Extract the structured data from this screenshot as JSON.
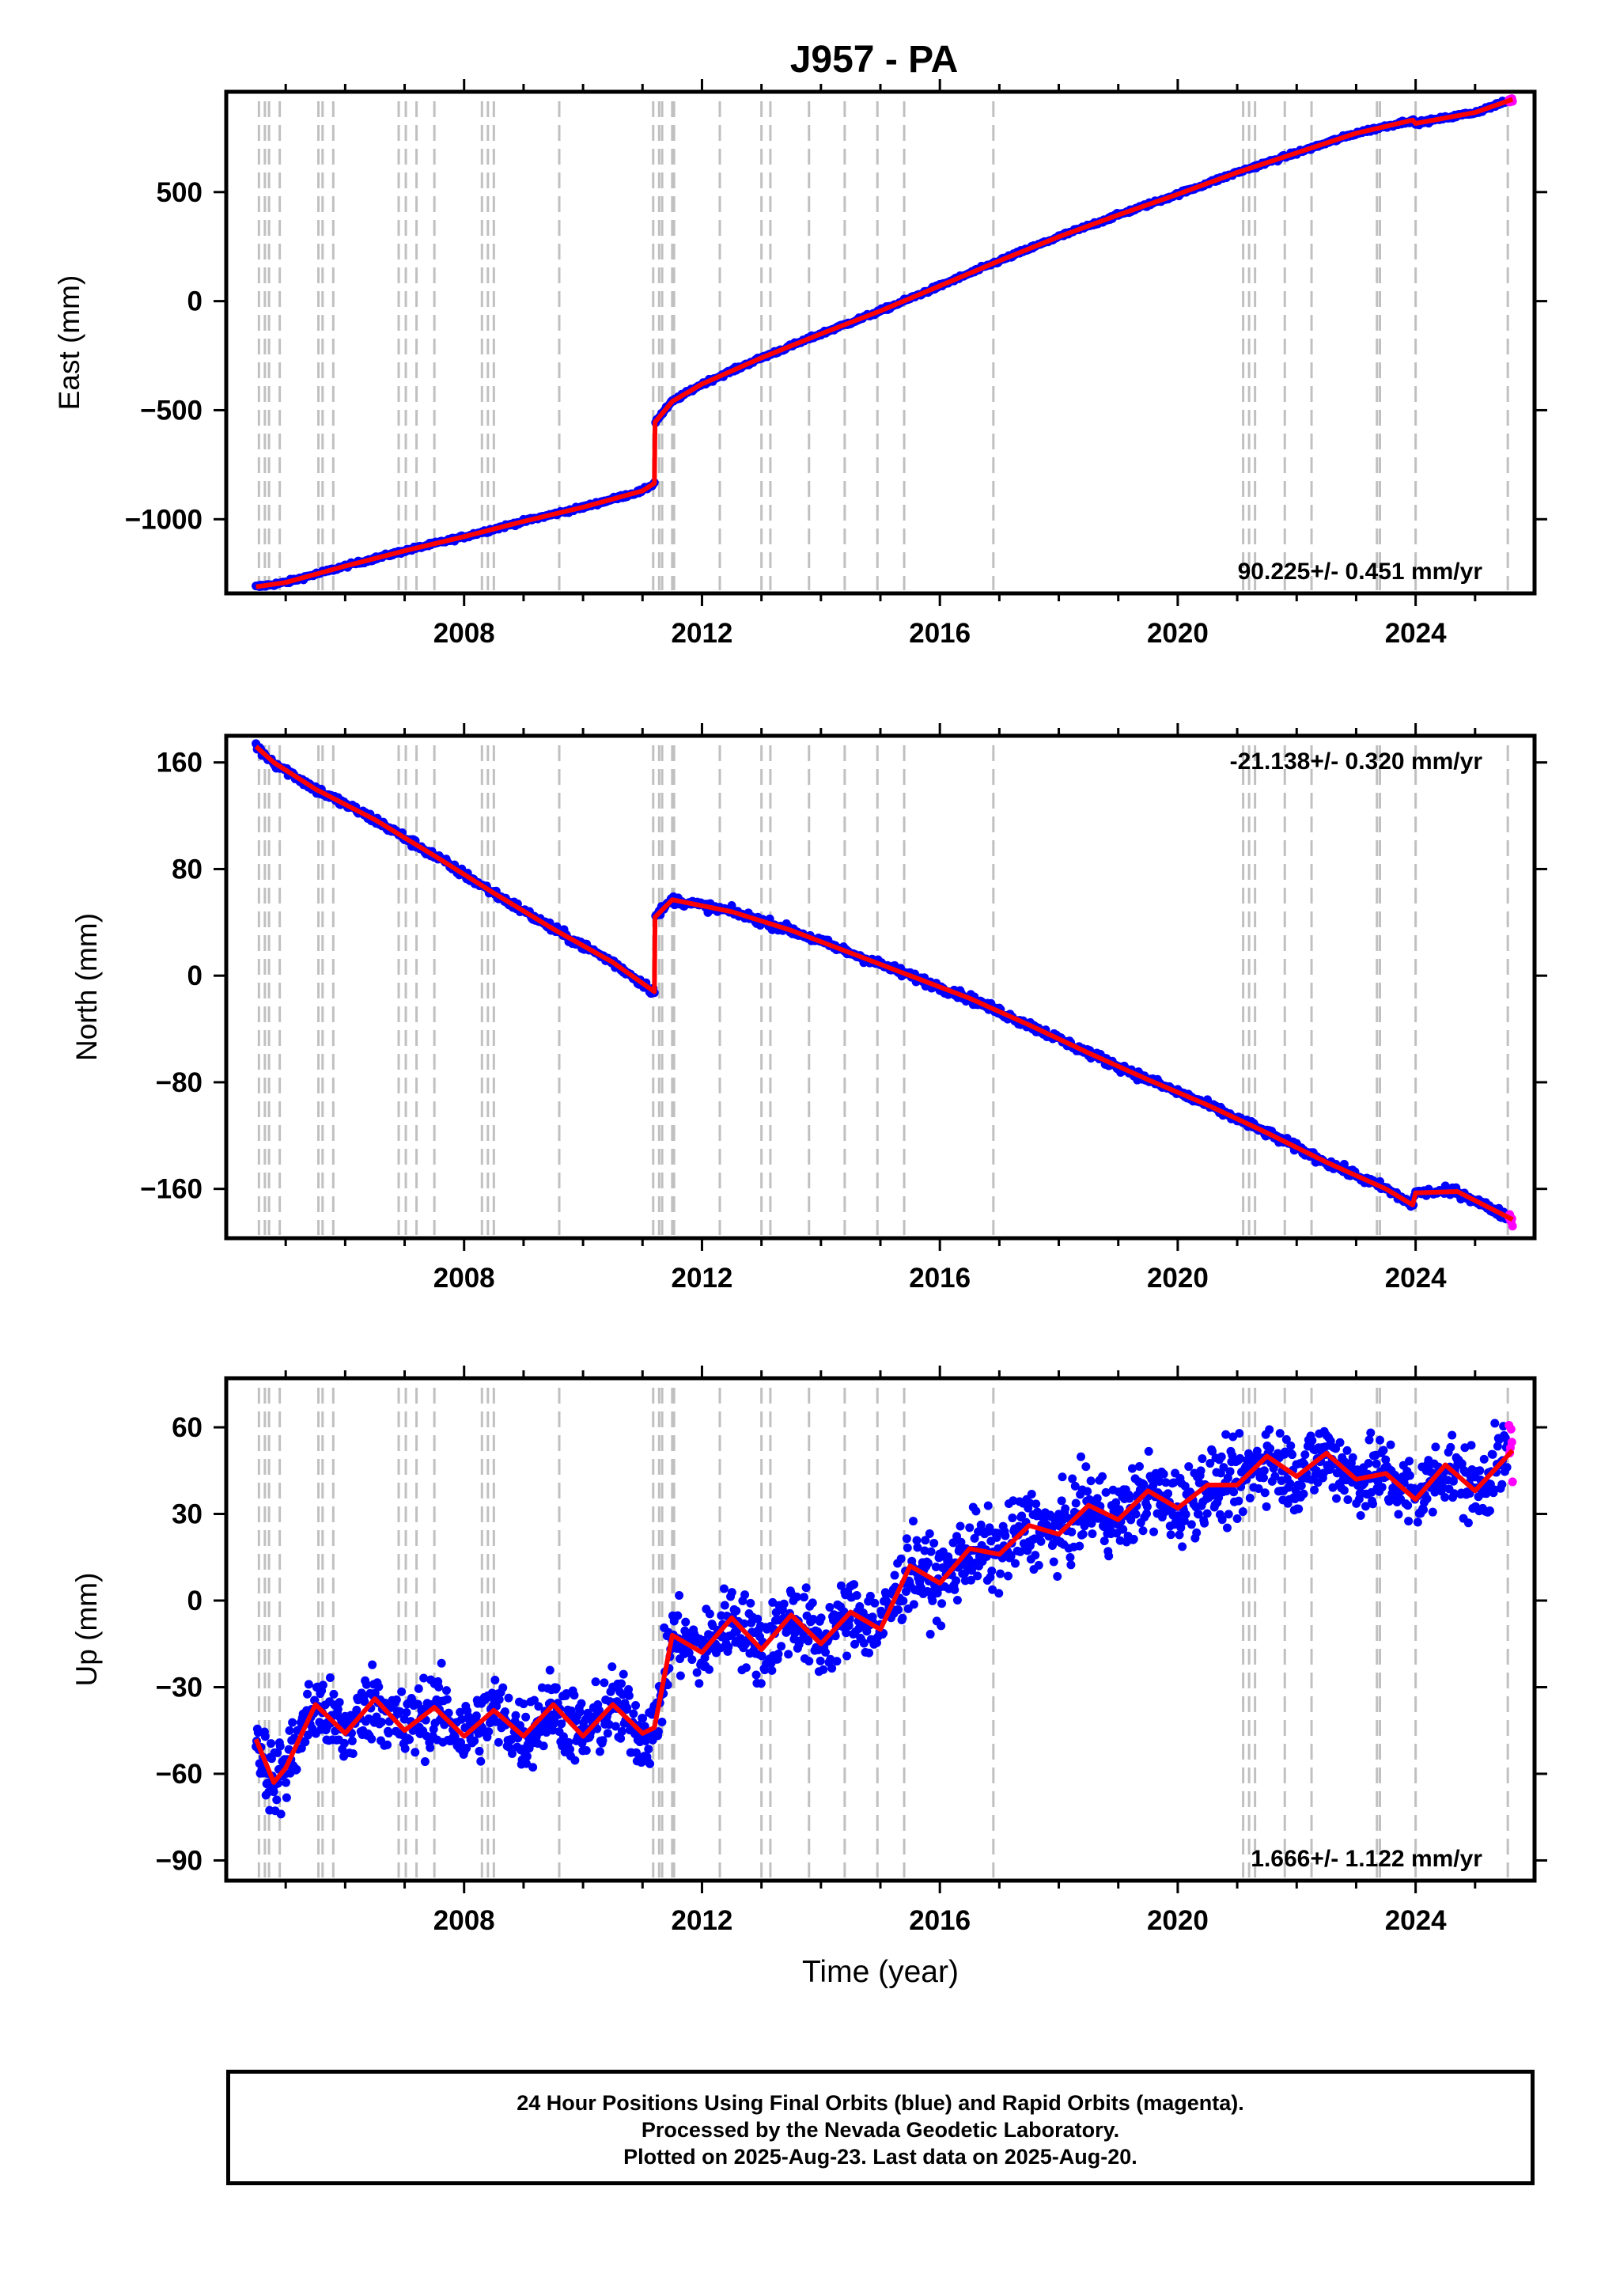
{
  "title": "J957 - PA",
  "colors": {
    "final_orbits": "#0000ff",
    "rapid_orbits": "#ff00ff",
    "model": "#ff0000",
    "event_lines": "#c0c0c0"
  },
  "xaxis": {
    "label": "Time (year)",
    "ticks": [
      "2008",
      "2012",
      "2016",
      "2020",
      "2024"
    ]
  },
  "footer": {
    "line1": "24 Hour Positions Using Final Orbits (blue) and Rapid Orbits (magenta).",
    "line2": "Processed by the Nevada Geodetic Laboratory.",
    "line3": "Plotted on 2025-Aug-23. Last data on 2025-Aug-20."
  },
  "chart_data": [
    {
      "type": "scatter",
      "component": "east",
      "ylabel": "East (mm)",
      "xlim": [
        2004.0,
        2026.0
      ],
      "ylim": [
        -1340,
        960
      ],
      "yticks": [
        -1000,
        -500,
        0,
        500
      ],
      "rate_label": "90.225+/- 0.451 mm/yr",
      "rate_position": "bottom-right",
      "x": [
        2004.5,
        2005.0,
        2006.0,
        2007.0,
        2008.0,
        2009.0,
        2010.0,
        2011.0,
        2011.2,
        2011.21,
        2011.5,
        2012.0,
        2013.0,
        2014.0,
        2015.0,
        2016.0,
        2017.0,
        2018.0,
        2019.0,
        2020.0,
        2021.0,
        2022.0,
        2023.0,
        2023.95,
        2024.0,
        2025.0,
        2025.63
      ],
      "y": [
        -1310,
        -1290,
        -1215,
        -1145,
        -1080,
        -1010,
        -945,
        -870,
        -835,
        -555,
        -460,
        -380,
        -260,
        -150,
        -45,
        70,
        185,
        295,
        395,
        490,
        590,
        680,
        770,
        830,
        815,
        865,
        925
      ]
    },
    {
      "type": "scatter",
      "component": "north",
      "ylabel": "North (mm)",
      "xlim": [
        2004.0,
        2026.0
      ],
      "ylim": [
        -197,
        180
      ],
      "yticks": [
        -160,
        -80,
        0,
        80,
        160
      ],
      "rate_label": "-21.138+/- 0.320 mm/yr",
      "rate_position": "top-right",
      "x": [
        2004.5,
        2004.8,
        2005.5,
        2006.5,
        2007.5,
        2008.5,
        2009.5,
        2010.5,
        2011.2,
        2011.21,
        2011.5,
        2012.5,
        2013.5,
        2014.5,
        2015.5,
        2016.5,
        2017.5,
        2018.5,
        2019.5,
        2020.5,
        2021.5,
        2022.5,
        2023.5,
        2023.95,
        2024.0,
        2024.7,
        2025.63
      ],
      "y": [
        172,
        160,
        140,
        117,
        90,
        62,
        35,
        10,
        -12,
        44,
        57,
        48,
        34,
        17,
        0,
        -17,
        -37,
        -58,
        -78,
        -97,
        -118,
        -140,
        -160,
        -172,
        -163,
        -162,
        -183
      ]
    },
    {
      "type": "scatter",
      "component": "up",
      "ylabel": "Up (mm)",
      "xlim": [
        2004.0,
        2026.0
      ],
      "ylim": [
        -97,
        77
      ],
      "yticks": [
        -90,
        -60,
        -30,
        0,
        30,
        60
      ],
      "rate_label": "1.666+/- 1.122 mm/yr",
      "rate_position": "bottom-right",
      "x": [
        2004.5,
        2004.8,
        2005.0,
        2005.5,
        2006.0,
        2006.5,
        2007.0,
        2007.5,
        2008.0,
        2008.5,
        2009.0,
        2009.5,
        2010.0,
        2010.5,
        2011.0,
        2011.2,
        2011.5,
        2012.0,
        2012.5,
        2013.0,
        2013.5,
        2014.0,
        2014.5,
        2015.0,
        2015.5,
        2016.0,
        2016.5,
        2017.0,
        2017.5,
        2018.0,
        2018.5,
        2019.0,
        2019.5,
        2020.0,
        2020.5,
        2021.0,
        2021.5,
        2022.0,
        2022.5,
        2023.0,
        2023.5,
        2024.0,
        2024.5,
        2025.0,
        2025.63
      ],
      "y": [
        -48,
        -63,
        -58,
        -36,
        -46,
        -34,
        -45,
        -37,
        -47,
        -38,
        -47,
        -36,
        -47,
        -36,
        -46,
        -44,
        -12,
        -18,
        -6,
        -17,
        -5,
        -15,
        -4,
        -10,
        12,
        6,
        18,
        16,
        26,
        23,
        33,
        28,
        38,
        32,
        40,
        40,
        50,
        43,
        51,
        42,
        44,
        35,
        47,
        38,
        52
      ]
    }
  ],
  "event_lines_x": [
    2004.55,
    2004.65,
    2004.72,
    2004.9,
    2005.55,
    2005.62,
    2005.8,
    2006.9,
    2007.02,
    2007.2,
    2007.5,
    2008.3,
    2008.4,
    2008.5,
    2009.6,
    2011.18,
    2011.28,
    2011.33,
    2011.5,
    2011.53,
    2012.3,
    2013.0,
    2013.15,
    2013.8,
    2014.4,
    2014.95,
    2015.4,
    2016.9,
    2021.1,
    2021.2,
    2021.3,
    2021.8,
    2022.25,
    2023.35,
    2023.4,
    2024.0,
    2025.55
  ]
}
